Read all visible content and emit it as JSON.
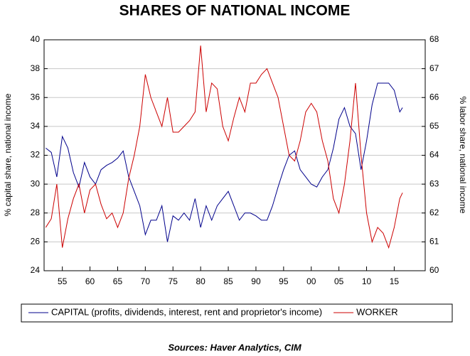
{
  "chart_data": {
    "type": "line",
    "title": "SHARES OF NATIONAL INCOME",
    "ylabel": "% capital share, national income",
    "y2label": "% labor share, national income",
    "source": "Sources:  Haver Analytics, CIM",
    "x": [
      1952,
      1953,
      1954,
      1955,
      1956,
      1957,
      1958,
      1959,
      1960,
      1961,
      1962,
      1963,
      1964,
      1965,
      1966,
      1967,
      1968,
      1969,
      1970,
      1971,
      1972,
      1973,
      1974,
      1975,
      1976,
      1977,
      1978,
      1979,
      1980,
      1981,
      1982,
      1983,
      1984,
      1985,
      1986,
      1987,
      1988,
      1989,
      1990,
      1991,
      1992,
      1993,
      1994,
      1995,
      1996,
      1997,
      1998,
      1999,
      2000,
      2001,
      2002,
      2003,
      2004,
      2005,
      2006,
      2007,
      2008,
      2009,
      2010,
      2011,
      2012,
      2013,
      2014,
      2015,
      2016,
      2016.5
    ],
    "series": [
      {
        "name": "CAPITAL (profits, dividends, interest, rent and proprietor's income)",
        "color": "#00008b",
        "axis": "y",
        "values": [
          32.5,
          32.2,
          30.5,
          33.3,
          32.5,
          30.8,
          29.8,
          31.5,
          30.5,
          30.0,
          31.0,
          31.3,
          31.5,
          31.8,
          32.3,
          30.5,
          29.5,
          28.5,
          26.5,
          27.5,
          27.5,
          28.5,
          26.0,
          27.8,
          27.5,
          28.0,
          27.5,
          29.0,
          27.0,
          28.5,
          27.5,
          28.5,
          29.0,
          29.5,
          28.5,
          27.5,
          28.0,
          28.0,
          27.8,
          27.5,
          27.5,
          28.5,
          29.8,
          31.0,
          32.0,
          32.3,
          31.0,
          30.5,
          30.0,
          29.8,
          30.5,
          31.0,
          32.5,
          34.5,
          35.3,
          34.0,
          33.5,
          31.0,
          33.0,
          35.5,
          37.0,
          37.0,
          37.0,
          36.5,
          35.0,
          35.3
        ]
      },
      {
        "name": "WORKER",
        "color": "#cc0000",
        "axis": "y2",
        "values": [
          61.5,
          61.8,
          63.0,
          60.8,
          61.8,
          62.5,
          63.0,
          62.0,
          62.8,
          63.0,
          62.3,
          61.8,
          62.0,
          61.5,
          62.0,
          63.2,
          64.0,
          65.0,
          66.8,
          66.0,
          65.5,
          65.0,
          66.0,
          64.8,
          64.8,
          65.0,
          65.2,
          65.5,
          67.8,
          65.5,
          66.5,
          66.3,
          65.0,
          64.5,
          65.3,
          66.0,
          65.5,
          66.5,
          66.5,
          66.8,
          67.0,
          66.5,
          66.0,
          65.0,
          64.0,
          63.8,
          64.5,
          65.5,
          65.8,
          65.5,
          64.5,
          63.8,
          62.5,
          62.0,
          63.0,
          64.5,
          66.5,
          64.0,
          62.0,
          61.0,
          61.5,
          61.3,
          60.8,
          61.5,
          62.5,
          62.7
        ]
      }
    ],
    "xlim": [
      1951.7,
      2020.6
    ],
    "xticks": [
      {
        "value": 1955,
        "label": "55"
      },
      {
        "value": 1960,
        "label": "60"
      },
      {
        "value": 1965,
        "label": "65"
      },
      {
        "value": 1970,
        "label": "70"
      },
      {
        "value": 1975,
        "label": "75"
      },
      {
        "value": 1980,
        "label": "80"
      },
      {
        "value": 1985,
        "label": "85"
      },
      {
        "value": 1990,
        "label": "90"
      },
      {
        "value": 1995,
        "label": "95"
      },
      {
        "value": 2000,
        "label": "00"
      },
      {
        "value": 2005,
        "label": "05"
      },
      {
        "value": 2010,
        "label": "10"
      },
      {
        "value": 2015,
        "label": "15"
      }
    ],
    "ylim": [
      24,
      40
    ],
    "yticks": [
      24,
      26,
      28,
      30,
      32,
      34,
      36,
      38,
      40
    ],
    "y2lim": [
      60,
      68
    ],
    "y2ticks": [
      60,
      61,
      62,
      63,
      64,
      65,
      66,
      67,
      68
    ],
    "grid": true,
    "legend": "bottom"
  }
}
